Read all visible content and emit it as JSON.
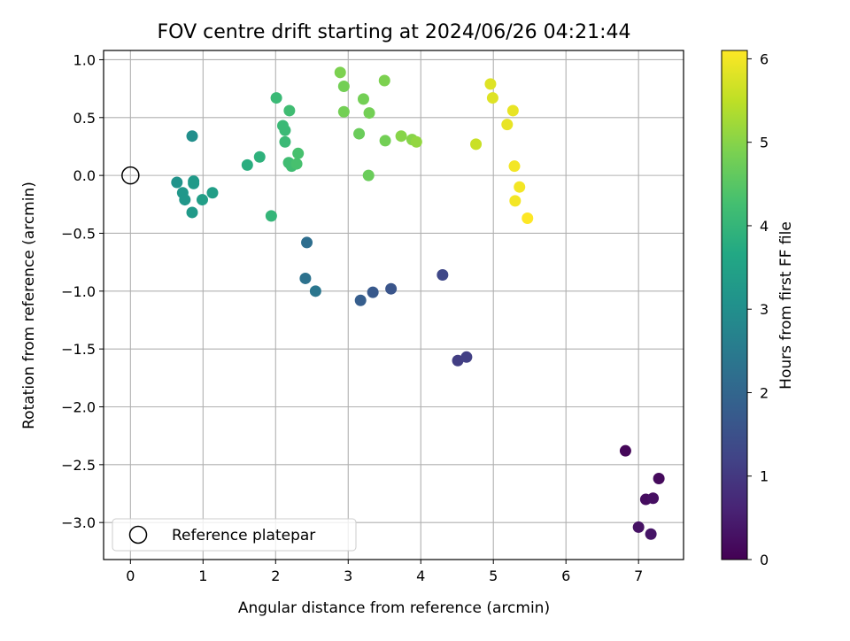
{
  "chart_data": {
    "type": "scatter",
    "title": "FOV centre drift starting at 2024/06/26 04:21:44",
    "xlabel": "Angular distance from reference (arcmin)",
    "ylabel": "Rotation from reference (arcmin)",
    "xlim": [
      -0.37,
      7.62
    ],
    "ylim": [
      -3.32,
      1.08
    ],
    "xticks": [
      0,
      1,
      2,
      3,
      4,
      5,
      6,
      7
    ],
    "yticks": [
      -3.0,
      -2.5,
      -2.0,
      -1.5,
      -1.0,
      -0.5,
      0.0,
      0.5,
      1.0
    ],
    "grid": true,
    "colormap": "viridis",
    "colorbar": {
      "label": "Hours from first FF file",
      "range": [
        0,
        6.1
      ],
      "ticks": [
        0,
        1,
        2,
        3,
        4,
        5,
        6
      ]
    },
    "legend": {
      "position": "lower-left",
      "entries": [
        "Reference platepar"
      ]
    },
    "reference_point": {
      "x": 0,
      "y": 0,
      "label": "Reference platepar"
    },
    "points": [
      {
        "x": 6.82,
        "y": -2.38,
        "c": 0.1
      },
      {
        "x": 7.28,
        "y": -2.62,
        "c": 0.15
      },
      {
        "x": 7.1,
        "y": -2.8,
        "c": 0.2
      },
      {
        "x": 7.2,
        "y": -2.79,
        "c": 0.25
      },
      {
        "x": 7.0,
        "y": -3.04,
        "c": 0.3
      },
      {
        "x": 7.17,
        "y": -3.1,
        "c": 0.35
      },
      {
        "x": 4.51,
        "y": -1.6,
        "c": 1.1
      },
      {
        "x": 4.63,
        "y": -1.57,
        "c": 1.15
      },
      {
        "x": 4.3,
        "y": -0.86,
        "c": 1.3
      },
      {
        "x": 3.59,
        "y": -0.98,
        "c": 1.6
      },
      {
        "x": 3.34,
        "y": -1.01,
        "c": 1.7
      },
      {
        "x": 3.17,
        "y": -1.08,
        "c": 1.8
      },
      {
        "x": 2.43,
        "y": -0.58,
        "c": 2.2
      },
      {
        "x": 2.41,
        "y": -0.89,
        "c": 2.3
      },
      {
        "x": 2.55,
        "y": -1.0,
        "c": 2.4
      },
      {
        "x": 0.85,
        "y": 0.34,
        "c": 3.0
      },
      {
        "x": 0.64,
        "y": -0.06,
        "c": 3.1
      },
      {
        "x": 0.72,
        "y": -0.15,
        "c": 3.2
      },
      {
        "x": 0.75,
        "y": -0.21,
        "c": 3.2
      },
      {
        "x": 0.87,
        "y": -0.05,
        "c": 3.3
      },
      {
        "x": 0.87,
        "y": -0.07,
        "c": 3.3
      },
      {
        "x": 0.85,
        "y": -0.32,
        "c": 3.3
      },
      {
        "x": 0.99,
        "y": -0.21,
        "c": 3.4
      },
      {
        "x": 1.13,
        "y": -0.15,
        "c": 3.4
      },
      {
        "x": 1.61,
        "y": 0.09,
        "c": 3.8
      },
      {
        "x": 1.78,
        "y": 0.16,
        "c": 3.9
      },
      {
        "x": 1.94,
        "y": -0.35,
        "c": 4.0
      },
      {
        "x": 2.01,
        "y": 0.67,
        "c": 4.1
      },
      {
        "x": 2.1,
        "y": 0.43,
        "c": 4.1
      },
      {
        "x": 2.13,
        "y": 0.39,
        "c": 4.1
      },
      {
        "x": 2.13,
        "y": 0.29,
        "c": 4.1
      },
      {
        "x": 2.19,
        "y": 0.56,
        "c": 4.2
      },
      {
        "x": 2.18,
        "y": 0.11,
        "c": 4.2
      },
      {
        "x": 2.22,
        "y": 0.08,
        "c": 4.2
      },
      {
        "x": 2.29,
        "y": 0.1,
        "c": 4.3
      },
      {
        "x": 2.31,
        "y": 0.19,
        "c": 4.3
      },
      {
        "x": 2.89,
        "y": 0.89,
        "c": 4.9
      },
      {
        "x": 2.94,
        "y": 0.77,
        "c": 4.8
      },
      {
        "x": 2.94,
        "y": 0.55,
        "c": 4.8
      },
      {
        "x": 3.15,
        "y": 0.36,
        "c": 4.7
      },
      {
        "x": 3.21,
        "y": 0.66,
        "c": 4.8
      },
      {
        "x": 3.29,
        "y": 0.54,
        "c": 4.8
      },
      {
        "x": 3.28,
        "y": 0.0,
        "c": 4.7
      },
      {
        "x": 3.5,
        "y": 0.82,
        "c": 4.9
      },
      {
        "x": 3.51,
        "y": 0.3,
        "c": 4.8
      },
      {
        "x": 3.73,
        "y": 0.34,
        "c": 5.0
      },
      {
        "x": 3.88,
        "y": 0.31,
        "c": 5.0
      },
      {
        "x": 3.94,
        "y": 0.29,
        "c": 5.1
      },
      {
        "x": 4.76,
        "y": 0.27,
        "c": 5.6
      },
      {
        "x": 4.96,
        "y": 0.79,
        "c": 5.8
      },
      {
        "x": 4.99,
        "y": 0.67,
        "c": 5.8
      },
      {
        "x": 5.19,
        "y": 0.44,
        "c": 5.9
      },
      {
        "x": 5.27,
        "y": 0.56,
        "c": 5.9
      },
      {
        "x": 5.29,
        "y": 0.08,
        "c": 6.0
      },
      {
        "x": 5.36,
        "y": -0.1,
        "c": 6.0
      },
      {
        "x": 5.3,
        "y": -0.22,
        "c": 6.0
      },
      {
        "x": 5.47,
        "y": -0.37,
        "c": 6.1
      }
    ]
  }
}
